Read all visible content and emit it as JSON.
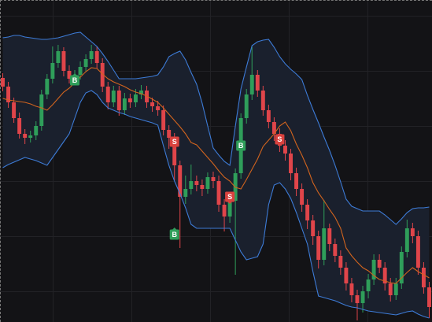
{
  "chart_data": {
    "type": "candlestick",
    "xlim": [
      -0.5,
      77.5
    ],
    "ylim": [
      0,
      409
    ],
    "up_color": "#2f9e5a",
    "down_color": "#e0454a",
    "band_fill": "#1a202d",
    "open": [
      310,
      299,
      279,
      259,
      239,
      234,
      237,
      249,
      289,
      309,
      329,
      344,
      319,
      309,
      314,
      324,
      334,
      344,
      329,
      299,
      279,
      294,
      269,
      284,
      279,
      289,
      294,
      279,
      274,
      269,
      244,
      234,
      199,
      159,
      169,
      179,
      174,
      169,
      184,
      179,
      149,
      134,
      154,
      189,
      259,
      289,
      314,
      294,
      269,
      254,
      239,
      224,
      214,
      189,
      169,
      149,
      129,
      109,
      79,
      119,
      99,
      84,
      69,
      49,
      34,
      24,
      39,
      54,
      79,
      69,
      49,
      34,
      49,
      89,
      119,
      109,
      69,
      44
    ],
    "high": [
      316,
      305,
      285,
      266,
      245,
      243,
      255,
      295,
      315,
      350,
      352,
      349,
      326,
      320,
      331,
      340,
      352,
      350,
      335,
      305,
      300,
      300,
      291,
      290,
      296,
      301,
      300,
      285,
      281,
      275,
      250,
      240,
      205,
      186,
      200,
      186,
      181,
      190,
      191,
      186,
      156,
      162,
      195,
      265,
      296,
      350,
      320,
      300,
      276,
      260,
      246,
      231,
      220,
      196,
      176,
      156,
      136,
      116,
      155,
      125,
      106,
      91,
      76,
      56,
      41,
      46,
      61,
      86,
      86,
      76,
      56,
      56,
      96,
      130,
      126,
      116,
      76,
      51
    ],
    "low": [
      293,
      272,
      253,
      233,
      226,
      228,
      231,
      243,
      283,
      303,
      323,
      312,
      303,
      302,
      308,
      318,
      328,
      322,
      292,
      270,
      273,
      262,
      263,
      272,
      273,
      283,
      272,
      267,
      262,
      237,
      220,
      180,
      94,
      150,
      162,
      166,
      160,
      163,
      170,
      140,
      115,
      126,
      60,
      182,
      252,
      282,
      286,
      262,
      246,
      230,
      216,
      205,
      180,
      160,
      140,
      118,
      98,
      68,
      72,
      90,
      76,
      60,
      40,
      25,
      2,
      12,
      30,
      47,
      62,
      40,
      26,
      28,
      42,
      82,
      100,
      60,
      36,
      5
    ],
    "close": [
      299,
      279,
      259,
      239,
      234,
      237,
      249,
      289,
      309,
      329,
      344,
      319,
      309,
      314,
      324,
      334,
      344,
      329,
      299,
      279,
      294,
      269,
      284,
      279,
      289,
      294,
      279,
      274,
      269,
      244,
      234,
      199,
      159,
      169,
      179,
      174,
      169,
      184,
      179,
      149,
      134,
      154,
      189,
      259,
      289,
      314,
      294,
      269,
      254,
      239,
      224,
      214,
      189,
      169,
      149,
      129,
      109,
      79,
      119,
      99,
      84,
      69,
      49,
      34,
      24,
      39,
      54,
      79,
      69,
      49,
      34,
      49,
      89,
      119,
      109,
      69,
      44,
      19
    ],
    "upper": {
      "color": "#3d7bd6",
      "values": [
        361,
        362,
        364,
        364,
        362,
        361,
        360,
        359,
        359,
        360,
        361,
        363,
        365,
        367,
        368,
        362,
        356,
        350,
        341,
        331,
        320,
        309,
        309,
        309,
        309,
        310,
        311,
        312,
        314,
        324,
        337,
        341,
        344,
        333,
        317,
        302,
        278,
        249,
        221,
        212,
        204,
        199,
        249,
        296,
        324,
        351,
        356,
        358,
        359,
        349,
        337,
        328,
        321,
        315,
        308,
        288,
        270,
        253,
        235,
        218,
        199,
        178,
        156,
        147,
        144,
        141,
        141,
        141,
        141,
        136,
        130,
        124,
        131,
        139,
        144,
        145,
        145,
        146
      ]
    },
    "middle": {
      "color": "#d2641e",
      "values": [
        284,
        282,
        281,
        280,
        279,
        277,
        274,
        272,
        269,
        276,
        284,
        292,
        297,
        304,
        311,
        318,
        323,
        322,
        315,
        309,
        305,
        302,
        299,
        295,
        292,
        290,
        287,
        283,
        279,
        272,
        264,
        256,
        248,
        239,
        228,
        225,
        217,
        209,
        201,
        192,
        184,
        179,
        171,
        169,
        181,
        194,
        207,
        223,
        231,
        239,
        249,
        254,
        243,
        226,
        212,
        196,
        177,
        164,
        154,
        143,
        133,
        119,
        94,
        84,
        76,
        69,
        65,
        59,
        54,
        52,
        50,
        49,
        56,
        63,
        69,
        64,
        60,
        56
      ]
    },
    "lower": {
      "color": "#3d7bd6",
      "values": [
        196,
        200,
        203,
        206,
        209,
        207,
        205,
        202,
        199,
        209,
        219,
        229,
        239,
        259,
        279,
        291,
        294,
        289,
        279,
        272,
        269,
        266,
        264,
        261,
        259,
        257,
        255,
        253,
        250,
        224,
        199,
        179,
        163,
        145,
        124,
        119,
        119,
        119,
        119,
        119,
        119,
        119,
        104,
        89,
        79,
        81,
        83,
        99,
        149,
        174,
        177,
        169,
        157,
        139,
        119,
        99,
        64,
        33,
        31,
        29,
        27,
        24,
        21,
        19,
        18,
        16,
        14,
        13,
        12,
        11,
        10,
        9,
        11,
        13,
        14,
        10,
        7,
        5
      ]
    },
    "signals": [
      {
        "label": "B",
        "x": 13,
        "value": 307,
        "color": "#2f9e5a"
      },
      {
        "label": "S",
        "x": 31,
        "value": 229,
        "color": "#d9423e"
      },
      {
        "label": "B",
        "x": 31,
        "value": 111,
        "color": "#2f9e5a"
      },
      {
        "label": "S",
        "x": 41,
        "value": 159,
        "color": "#d9423e"
      },
      {
        "label": "B",
        "x": 43,
        "value": 224,
        "color": "#2f9e5a"
      },
      {
        "label": "S",
        "x": 50,
        "value": 232,
        "color": "#d9423e"
      }
    ]
  }
}
